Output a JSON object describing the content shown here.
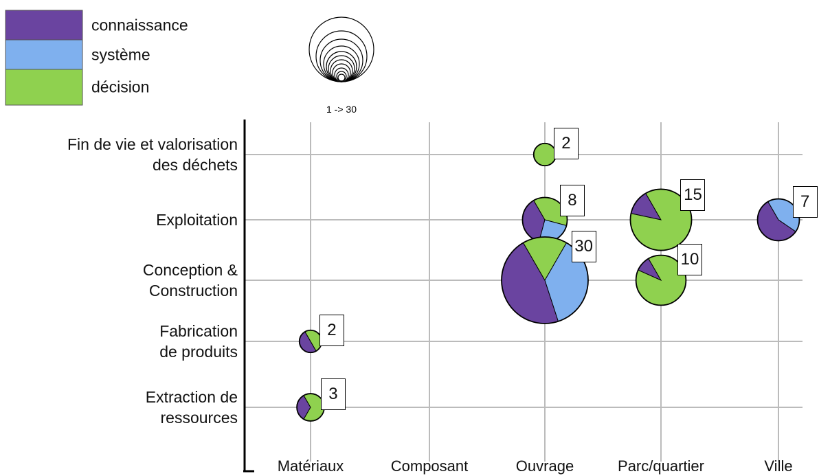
{
  "chart_data": {
    "type": "bubble-pie",
    "categories": [
      "Matériaux",
      "Composant",
      "Ouvrage",
      "Parc/quartier",
      "Ville"
    ],
    "y_categories": [
      "Extraction de\nressources",
      "Fabrication\nde produits",
      "Conception &\nConstruction",
      "Exploitation",
      "Fin de vie et valorisation\ndes déchets"
    ],
    "size_legend": "1 -> 30",
    "x": [
      "Ouvrage",
      "Ouvrage",
      "Ouvrage",
      "Parc/quartier",
      "Parc/quartier",
      "Ville",
      "Matériaux",
      "Matériaux"
    ],
    "y": [
      "Fin de vie et valorisation\ndes déchets",
      "Exploitation",
      "Conception &\nConstruction",
      "Exploitation",
      "Conception &\nConstruction",
      "Exploitation",
      "Fabrication\nde produits",
      "Extraction de\nressources"
    ],
    "sizes": [
      2,
      8,
      30,
      15,
      10,
      7,
      2,
      3
    ],
    "series": [
      {
        "name": "connaissance",
        "color": "#6a44a0",
        "values": [
          0,
          3,
          14,
          2,
          1,
          4,
          1,
          1
        ]
      },
      {
        "name": "système",
        "color": "#7fb0ee",
        "values": [
          0,
          2,
          11,
          0,
          0,
          3,
          0,
          0
        ]
      },
      {
        "name": "décision",
        "color": "#8fd14f",
        "values": [
          2,
          3,
          5,
          13,
          9,
          0,
          1,
          2
        ]
      }
    ],
    "grid": true
  }
}
